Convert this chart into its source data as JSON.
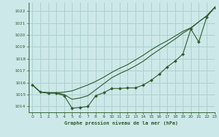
{
  "title": "Graphe pression niveau de la mer (hPa)",
  "bg_color": "#cde8e8",
  "grid_color": "#aacfcf",
  "line_color": "#2d5a2d",
  "xlim": [
    -0.5,
    23
  ],
  "ylim": [
    1013.5,
    1022.7
  ],
  "yticks": [
    1014,
    1015,
    1016,
    1017,
    1018,
    1019,
    1020,
    1021,
    1022
  ],
  "xticks": [
    0,
    1,
    2,
    3,
    4,
    5,
    6,
    7,
    8,
    9,
    10,
    11,
    12,
    13,
    14,
    15,
    16,
    17,
    18,
    19,
    20,
    21,
    22,
    23
  ],
  "series1_x": [
    0,
    1,
    2,
    3,
    4,
    5,
    6,
    7,
    8,
    9,
    10,
    11,
    12,
    13,
    14,
    15,
    16,
    17,
    18,
    19,
    20,
    21,
    22,
    23
  ],
  "series1_y": [
    1015.8,
    1015.2,
    1015.1,
    1015.1,
    1014.9,
    1013.85,
    1013.9,
    1014.0,
    1014.9,
    1015.15,
    1015.5,
    1015.5,
    1015.55,
    1015.55,
    1015.8,
    1016.2,
    1016.7,
    1017.3,
    1017.8,
    1018.4,
    1020.5,
    1019.4,
    1021.5,
    1022.3
  ],
  "series2_x": [
    0,
    1,
    2,
    3,
    4,
    5,
    6,
    7,
    8,
    9,
    10,
    11,
    12,
    13,
    14,
    15,
    16,
    17,
    18,
    19,
    20,
    21,
    22,
    23
  ],
  "series2_y": [
    1015.8,
    1015.2,
    1015.15,
    1015.15,
    1015.2,
    1015.3,
    1015.55,
    1015.8,
    1016.1,
    1016.45,
    1016.85,
    1017.2,
    1017.5,
    1017.9,
    1018.3,
    1018.75,
    1019.15,
    1019.5,
    1019.9,
    1020.3,
    1020.6,
    1021.1,
    1021.6,
    1022.3
  ],
  "series3_x": [
    0,
    1,
    2,
    3,
    4,
    5,
    6,
    7,
    8,
    9,
    10,
    11,
    12,
    13,
    14,
    15,
    16,
    17,
    18,
    19,
    20,
    21,
    22,
    23
  ],
  "series3_y": [
    1015.8,
    1015.2,
    1015.15,
    1015.15,
    1015.0,
    1014.6,
    1014.7,
    1014.9,
    1015.4,
    1015.9,
    1016.4,
    1016.75,
    1017.05,
    1017.4,
    1017.8,
    1018.3,
    1018.75,
    1019.2,
    1019.65,
    1020.15,
    1020.55,
    1021.1,
    1021.6,
    1022.3
  ]
}
